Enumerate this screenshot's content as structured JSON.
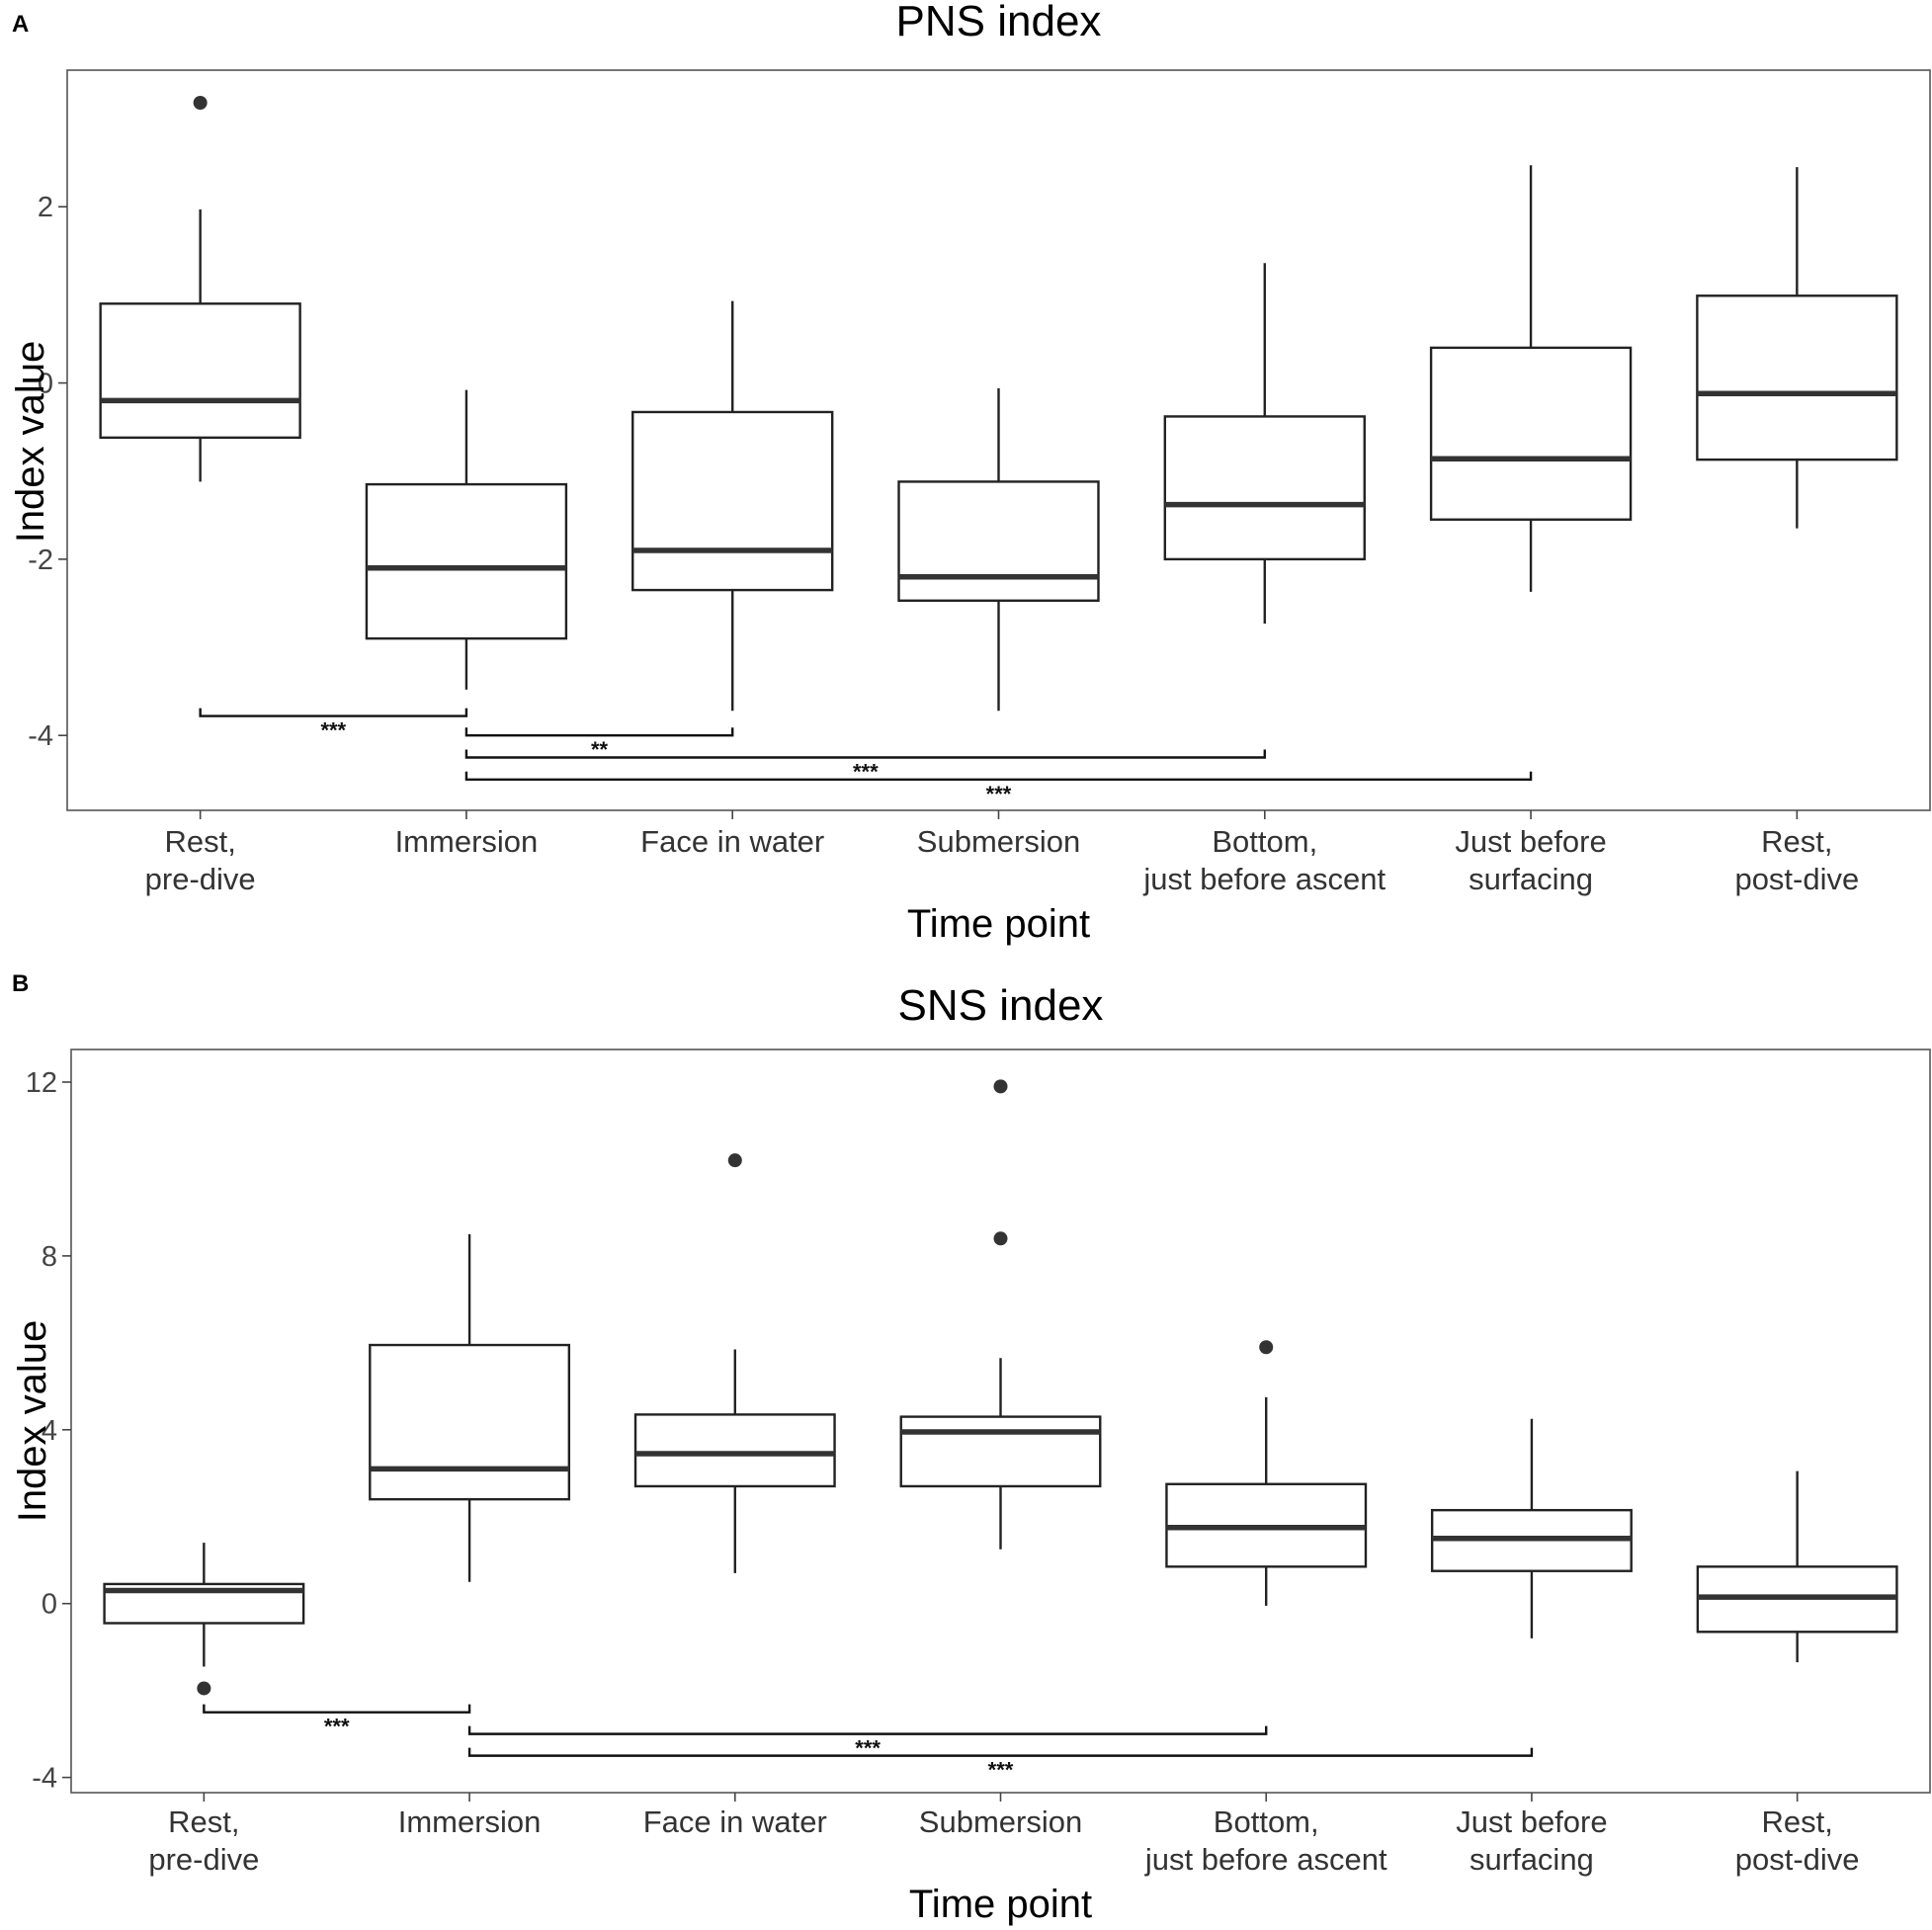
{
  "figure": {
    "xlabel": "Time point",
    "ylabel": "Index value",
    "categories": [
      [
        "Rest,",
        "pre-dive"
      ],
      [
        "Immersion"
      ],
      [
        "Face in water"
      ],
      [
        "Submersion"
      ],
      [
        "Bottom,",
        "just before ascent"
      ],
      [
        "Just before",
        "surfacing"
      ],
      [
        "Rest,",
        "post-dive"
      ]
    ]
  },
  "chart_data": [
    {
      "panel": "A",
      "type": "boxplot",
      "title": "PNS index",
      "xlabel": "Time point",
      "ylabel": "Index value",
      "ylim": [
        -4.85,
        3.55
      ],
      "yticks": [
        -4,
        -2,
        0,
        2
      ],
      "ytick_labels": [
        "-4",
        "-2",
        "0",
        "2"
      ],
      "series": [
        {
          "name": "Rest, pre-dive",
          "whisker_low": -1.12,
          "q1": -0.62,
          "median": -0.2,
          "q3": 0.9,
          "whisker_high": 1.97,
          "outliers": [
            3.18
          ]
        },
        {
          "name": "Immersion",
          "whisker_low": -3.48,
          "q1": -2.9,
          "median": -2.1,
          "q3": -1.15,
          "whisker_high": -0.08,
          "outliers": []
        },
        {
          "name": "Face in water",
          "whisker_low": -3.72,
          "q1": -2.35,
          "median": -1.9,
          "q3": -0.33,
          "whisker_high": 0.93,
          "outliers": []
        },
        {
          "name": "Submersion",
          "whisker_low": -3.72,
          "q1": -2.47,
          "median": -2.2,
          "q3": -1.12,
          "whisker_high": -0.06,
          "outliers": []
        },
        {
          "name": "Bottom, just before ascent",
          "whisker_low": -2.73,
          "q1": -2.0,
          "median": -1.38,
          "q3": -0.38,
          "whisker_high": 1.36,
          "outliers": []
        },
        {
          "name": "Just before surfacing",
          "whisker_low": -2.37,
          "q1": -1.55,
          "median": -0.86,
          "q3": 0.4,
          "whisker_high": 2.47,
          "outliers": []
        },
        {
          "name": "Rest, post-dive",
          "whisker_low": -1.65,
          "q1": -0.87,
          "median": -0.12,
          "q3": 0.99,
          "whisker_high": 2.45,
          "outliers": []
        }
      ],
      "significance": [
        {
          "from": 0,
          "to": 1,
          "y": -3.78,
          "label": "***"
        },
        {
          "from": 1,
          "to": 2,
          "y": -4.0,
          "label": "**"
        },
        {
          "from": 1,
          "to": 4,
          "y": -4.25,
          "label": "***"
        },
        {
          "from": 1,
          "to": 5,
          "y": -4.5,
          "label": "***"
        }
      ]
    },
    {
      "panel": "B",
      "type": "boxplot",
      "title": "SNS index",
      "xlabel": "Time point",
      "ylabel": "Index value",
      "ylim": [
        -4.35,
        12.75
      ],
      "yticks": [
        -4,
        0,
        4,
        8,
        12
      ],
      "ytick_labels": [
        "-4",
        "0",
        "4",
        "8",
        "12"
      ],
      "series": [
        {
          "name": "Rest, pre-dive",
          "whisker_low": -1.45,
          "q1": -0.45,
          "median": 0.3,
          "q3": 0.45,
          "whisker_high": 1.4,
          "outliers": [
            -1.95
          ]
        },
        {
          "name": "Immersion",
          "whisker_low": 0.5,
          "q1": 2.4,
          "median": 3.1,
          "q3": 5.95,
          "whisker_high": 8.5,
          "outliers": []
        },
        {
          "name": "Face in water",
          "whisker_low": 0.7,
          "q1": 2.7,
          "median": 3.45,
          "q3": 4.35,
          "whisker_high": 5.85,
          "outliers": [
            10.2
          ]
        },
        {
          "name": "Submersion",
          "whisker_low": 1.25,
          "q1": 2.7,
          "median": 3.95,
          "q3": 4.3,
          "whisker_high": 5.65,
          "outliers": [
            11.9,
            8.4
          ]
        },
        {
          "name": "Bottom, just before ascent",
          "whisker_low": -0.05,
          "q1": 0.85,
          "median": 1.75,
          "q3": 2.75,
          "whisker_high": 4.75,
          "outliers": [
            5.9
          ]
        },
        {
          "name": "Just before surfacing",
          "whisker_low": -0.8,
          "q1": 0.75,
          "median": 1.5,
          "q3": 2.15,
          "whisker_high": 4.25,
          "outliers": []
        },
        {
          "name": "Rest, post-dive",
          "whisker_low": -1.35,
          "q1": -0.65,
          "median": 0.15,
          "q3": 0.85,
          "whisker_high": 3.05,
          "outliers": []
        }
      ],
      "significance": [
        {
          "from": 0,
          "to": 1,
          "y": -2.5,
          "label": "***"
        },
        {
          "from": 1,
          "to": 4,
          "y": -3.0,
          "label": "***"
        },
        {
          "from": 1,
          "to": 5,
          "y": -3.5,
          "label": "***"
        }
      ]
    }
  ]
}
